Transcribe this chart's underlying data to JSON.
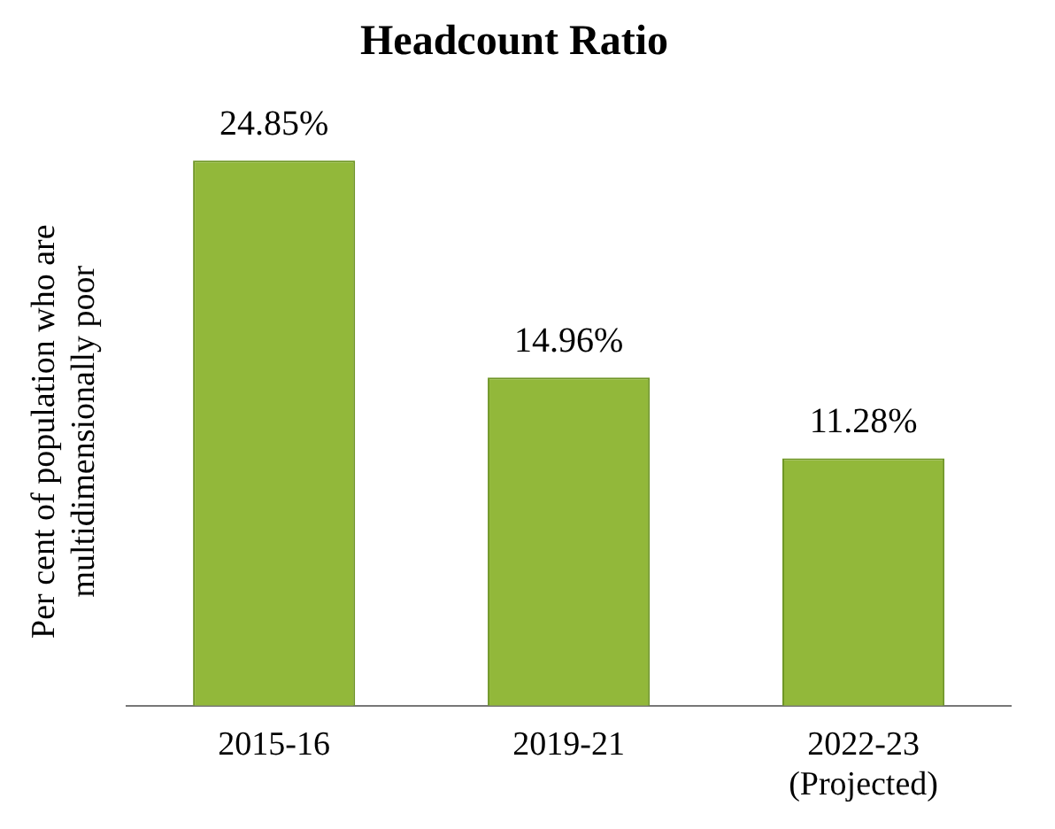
{
  "chart_data": {
    "type": "bar",
    "title": "Headcount Ratio",
    "ylabel": "Per cent of population who are multidimensionally poor",
    "categories": [
      "2015-16",
      "2019-21",
      "2022-23 (Projected)"
    ],
    "values": [
      24.85,
      14.96,
      11.28
    ],
    "value_labels": [
      "24.85%",
      "14.96%",
      "11.28%"
    ],
    "color": "#92b83a",
    "grid": false,
    "legend": false
  }
}
